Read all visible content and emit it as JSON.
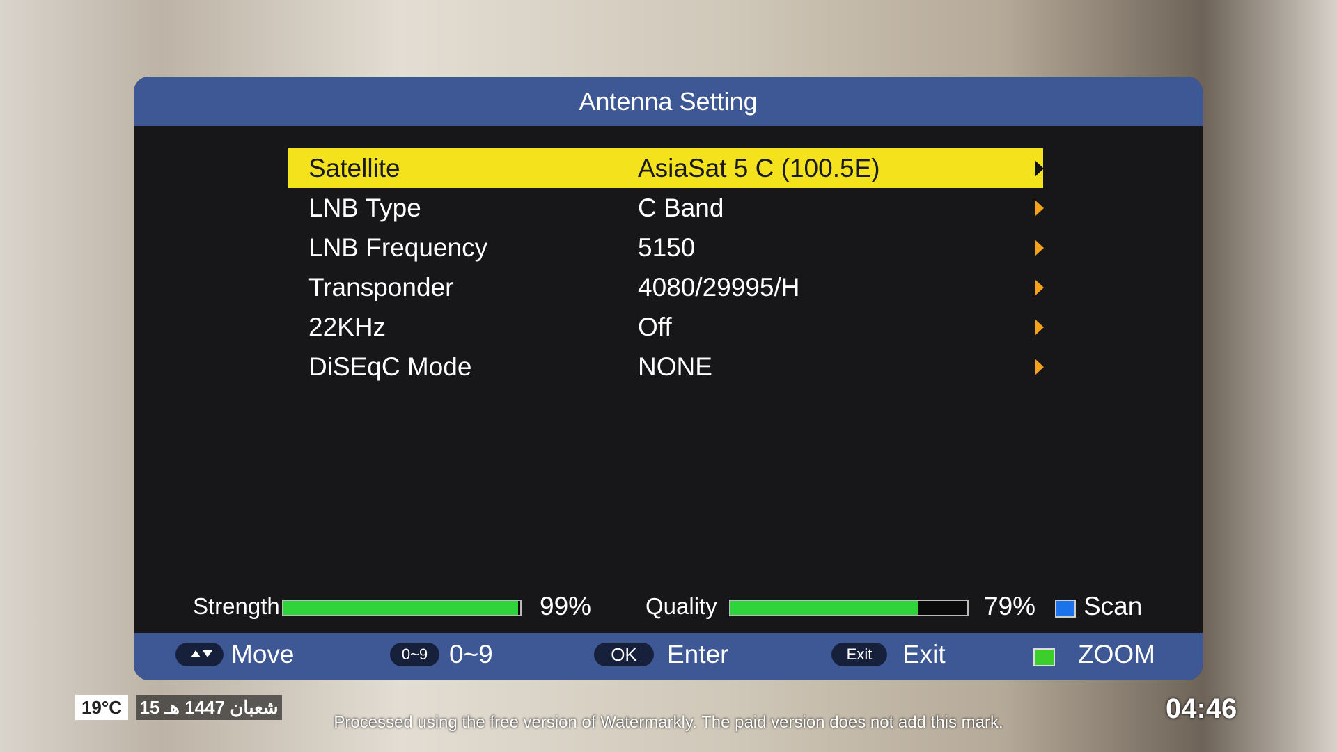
{
  "header": {
    "title": "Antenna Setting"
  },
  "menu": [
    {
      "label": "Satellite",
      "value": "AsiaSat 5 C (100.5E)"
    },
    {
      "label": "LNB Type",
      "value": "C Band"
    },
    {
      "label": "LNB Frequency",
      "value": "5150"
    },
    {
      "label": "Transponder",
      "value": "4080/29995/H"
    },
    {
      "label": "22KHz",
      "value": "Off"
    },
    {
      "label": "DiSEqC Mode",
      "value": "NONE"
    }
  ],
  "signal": {
    "strength": {
      "label": "Strength",
      "value": 99,
      "value_label": "99%"
    },
    "quality": {
      "label": "Quality",
      "value": 79,
      "value_label": "79%"
    },
    "scan": "Scan"
  },
  "footer": {
    "move": "Move",
    "digits": {
      "key": "0~9",
      "label": "0~9"
    },
    "ok": {
      "key": "OK",
      "label": "Enter"
    },
    "exit": {
      "key": "Exit",
      "label": "Exit"
    },
    "zoom": "ZOOM"
  },
  "overlay": {
    "temperature": "19°C",
    "date": "15 شعبان 1447 هـ",
    "time": "04:46",
    "watermark": "Processed using the free version of Watermarkly. The paid version does not add this mark."
  }
}
